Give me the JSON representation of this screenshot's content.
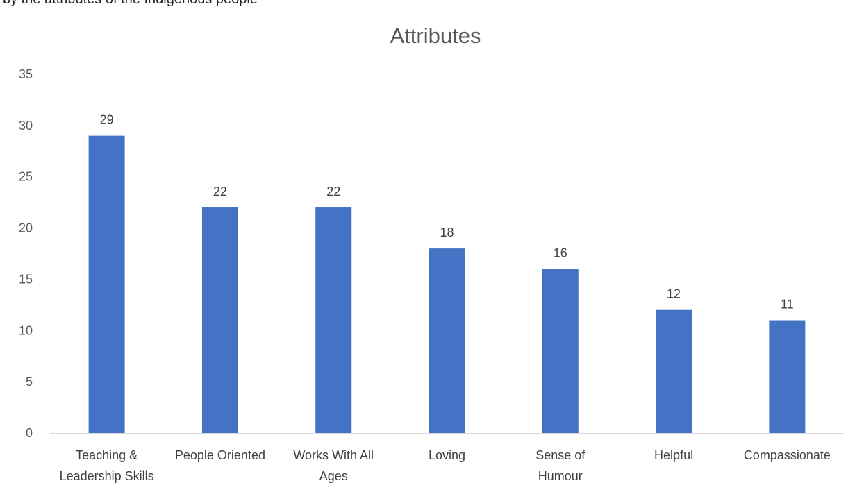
{
  "caption_fragment": "by the attributes of the Indigenous people",
  "colors": {
    "bar": "#4472c4",
    "axis": "#d9d9d9",
    "text": "#595959"
  },
  "chart_data": {
    "type": "bar",
    "title": "Attributes",
    "categories": [
      [
        "Teaching &",
        "Leadership Skills"
      ],
      [
        "People Oriented"
      ],
      [
        "Works With All",
        "Ages"
      ],
      [
        "Loving"
      ],
      [
        "Sense of",
        "Humour"
      ],
      [
        "Helpful"
      ],
      [
        "Compassionate"
      ]
    ],
    "values": [
      29,
      22,
      22,
      18,
      16,
      12,
      11
    ],
    "data_labels": [
      "29",
      "22",
      "22",
      "18",
      "16",
      "12",
      "11"
    ],
    "ylim": [
      0,
      35
    ],
    "yticks": [
      "0",
      "5",
      "10",
      "15",
      "20",
      "25",
      "30",
      "35"
    ],
    "xlabel": "",
    "ylabel": "",
    "grid": false,
    "legend": "none"
  }
}
